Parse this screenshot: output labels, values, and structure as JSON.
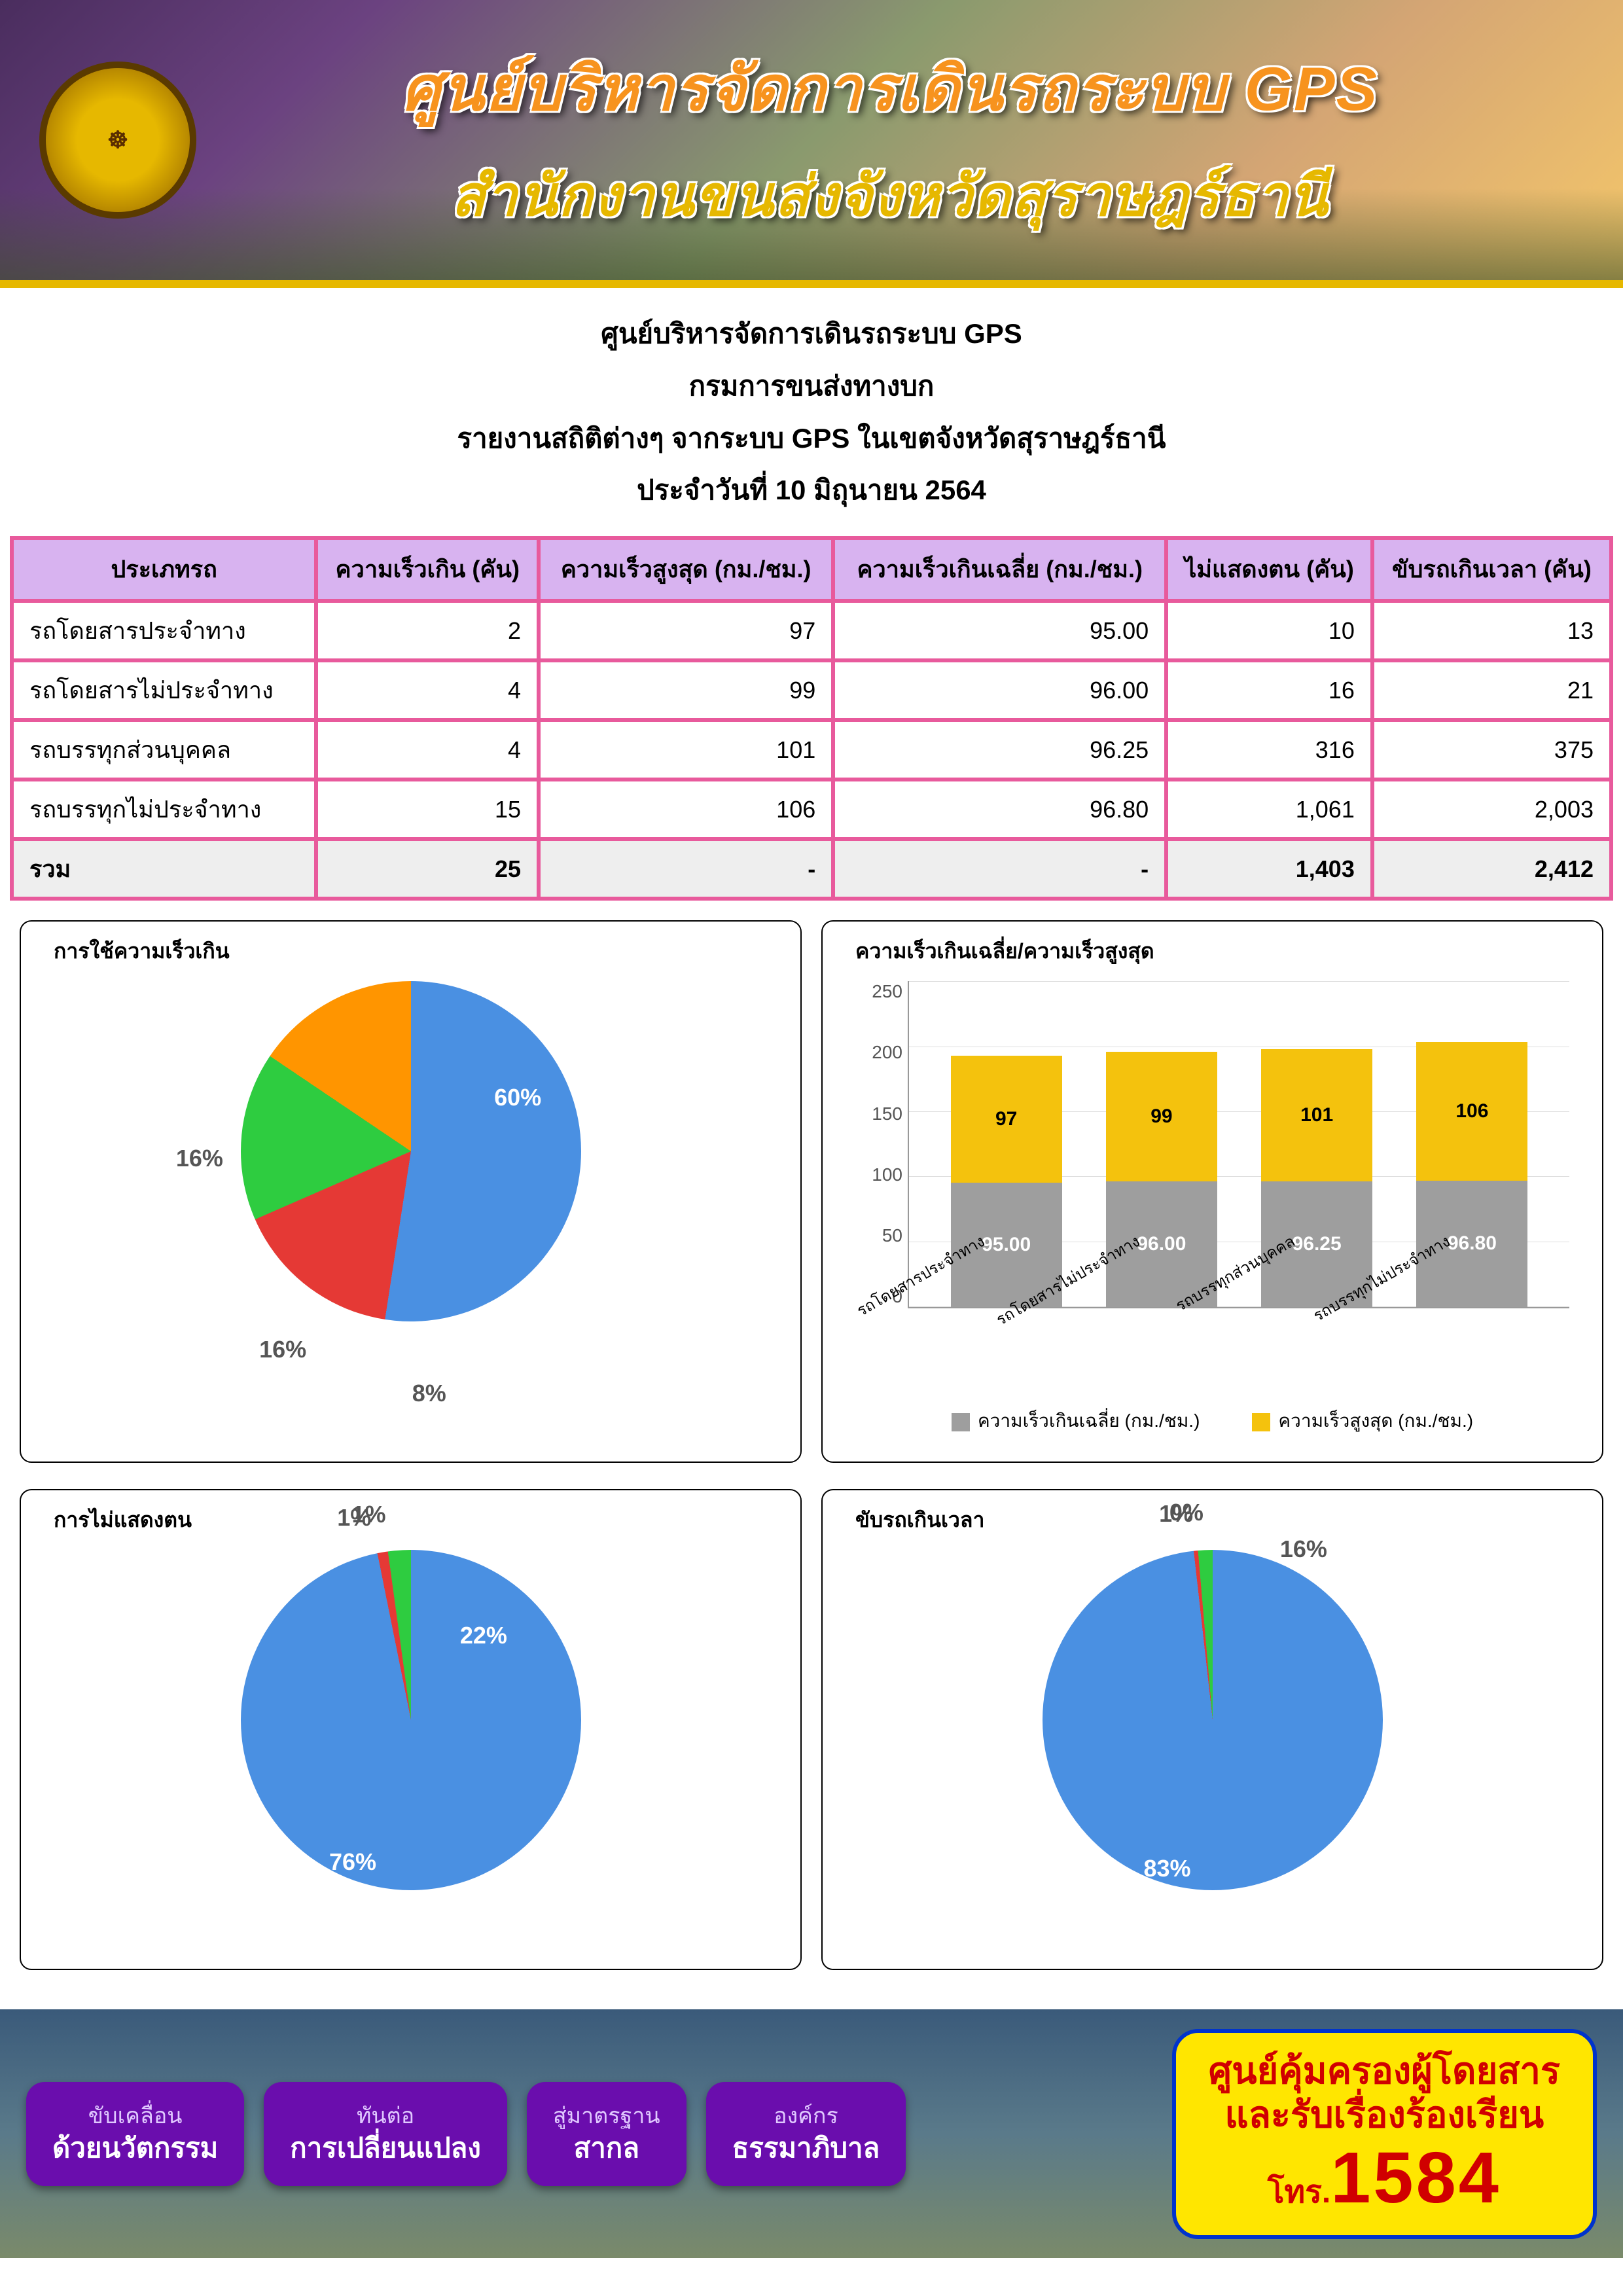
{
  "colors": {
    "blue": "#4a90e2",
    "red": "#e53935",
    "green": "#2ecc40",
    "orange": "#ff9500",
    "gray": "#9e9e9e",
    "yellow": "#f4c20d"
  },
  "banner": {
    "line1": "ศูนย์บริหารจัดการเดินรถระบบ GPS",
    "line2": "สำนักงานขนส่งจังหวัดสุราษฎร์ธานี"
  },
  "subheader": {
    "l1": "ศูนย์บริหารจัดการเดินรถระบบ GPS",
    "l2": "กรมการขนส่งทางบก",
    "l3": "รายงานสถิติต่างๆ จากระบบ GPS ในเขตจังหวัดสุราษฎร์ธานี",
    "l4": "ประจำวันที่    10  มิถุนายน     2564"
  },
  "table": {
    "headers": [
      "ประเภทรถ",
      "ความเร็วเกิน (คัน)",
      "ความเร็วสูงสุด (กม./ชม.)",
      "ความเร็วเกินเฉลี่ย (กม./ชม.)",
      "ไม่แสดงตน (คัน)",
      "ขับรถเกินเวลา (คัน)"
    ],
    "rows": [
      [
        "รถโดยสารประจำทาง",
        "2",
        "97",
        "95.00",
        "10",
        "13"
      ],
      [
        "รถโดยสารไม่ประจำทาง",
        "4",
        "99",
        "96.00",
        "16",
        "21"
      ],
      [
        "รถบรรทุกส่วนบุคคล",
        "4",
        "101",
        "96.25",
        "316",
        "375"
      ],
      [
        "รถบรรทุกไม่ประจำทาง",
        "15",
        "106",
        "96.80",
        "1,061",
        "2,003"
      ]
    ],
    "total": [
      "รวม",
      "25",
      "-",
      "-",
      "1,403",
      "2,412"
    ]
  },
  "pie1": {
    "title": "การใช้ความเร็วเกิน",
    "slices": [
      {
        "label": "8%",
        "value": 8,
        "color": "#4a90e2"
      },
      {
        "label": "16%",
        "value": 16,
        "color": "#e53935"
      },
      {
        "label": "16%",
        "value": 16,
        "color": "#2ecc40"
      },
      {
        "label": "60%",
        "value": 60,
        "color": "#ff9500"
      }
    ]
  },
  "barChart": {
    "title": "ความเร็วเกินเฉลี่ย/ความเร็วสูงสุด",
    "ymax": 250,
    "yticks": [
      "0",
      "50",
      "100",
      "150",
      "200",
      "250"
    ],
    "categories": [
      "รถโดยสารประจำทาง",
      "รถโดยสารไม่ประจำทาง",
      "รถบรรทุกส่วนบุคคล",
      "รถบรรทุกไม่ประจำทาง"
    ],
    "series": [
      {
        "name": "ความเร็วเกินเฉลี่ย (กม./ชม.)",
        "color": "#9e9e9e",
        "values": [
          "95.00",
          "96.00",
          "96.25",
          "96.80"
        ],
        "num": [
          95.0,
          96.0,
          96.25,
          96.8
        ]
      },
      {
        "name": "ความเร็วสูงสุด (กม./ชม.)",
        "color": "#f4c20d",
        "values": [
          "97",
          "99",
          "101",
          "106"
        ],
        "num": [
          97,
          99,
          101,
          106
        ]
      }
    ]
  },
  "pie2": {
    "title": "การไม่แสดงตน",
    "slices": [
      {
        "label": "1%",
        "value": 1,
        "color": "#4a90e2"
      },
      {
        "label": "1%",
        "value": 1,
        "color": "#e53935"
      },
      {
        "label": "22%",
        "value": 22,
        "color": "#2ecc40"
      },
      {
        "label": "76%",
        "value": 76,
        "color": "#ff9500"
      }
    ]
  },
  "pie3": {
    "title": "ขับรถเกินเวลา",
    "slices": [
      {
        "label": "1%",
        "value": 1,
        "color": "#4a90e2"
      },
      {
        "label": "0%",
        "value": 0.4,
        "color": "#e53935"
      },
      {
        "label": "16%",
        "value": 16,
        "color": "#2ecc40"
      },
      {
        "label": "83%",
        "value": 83,
        "color": "#ff9500"
      }
    ]
  },
  "footer": {
    "pills": [
      {
        "top": "ขับเคลื่อน",
        "bottom": "ด้วยนวัตกรรม"
      },
      {
        "top": "ทันต่อ",
        "bottom": "การเปลี่ยนแปลง"
      },
      {
        "top": "สู่มาตรฐาน",
        "bottom": "สากล"
      },
      {
        "top": "องค์กร",
        "bottom": "ธรรมาภิบาล"
      }
    ],
    "callout": {
      "l1": "ศูนย์คุ้มครองผู้โดยสาร",
      "l2": "และรับเรื่องร้องเรียน",
      "l3_prefix": "โทร.",
      "l3_num": "1584"
    }
  }
}
